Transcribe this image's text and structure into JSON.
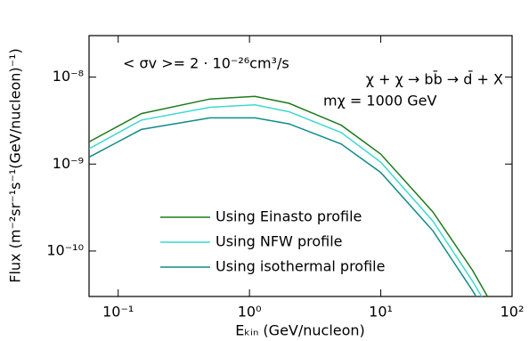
{
  "chart_data": {
    "type": "line",
    "annotations": [
      "< σv >= 2 · 10⁻²⁶cm³/s",
      "χ + χ → bb̄ → d̄ + X",
      "mχ = 1000 GeV"
    ],
    "x_label": "Eₖᵢₙ (GeV/nucleon)",
    "y_label": "Flux (m⁻²sr⁻¹s⁻¹(GeV/nucleon)⁻¹)",
    "x": [
      0.06,
      0.15,
      0.5,
      1.1,
      2,
      5,
      10,
      25,
      50,
      65
    ],
    "series": [
      {
        "name": "Using Einasto profile",
        "color": "#1e7a1e",
        "values": [
          1.8e-09,
          3.8e-09,
          5.6e-09,
          6e-09,
          5e-09,
          2.8e-09,
          1.3e-09,
          2.8e-10,
          6e-11,
          3e-11
        ]
      },
      {
        "name": "Using NFW profile",
        "color": "#3fd8d0",
        "values": [
          1.5e-09,
          3.2e-09,
          4.5e-09,
          4.8e-09,
          4e-09,
          2.3e-09,
          1.05e-09,
          2.2e-10,
          4.5e-11,
          2.3e-11
        ]
      },
      {
        "name": "Using isothermal profile",
        "color": "#138a8a",
        "values": [
          1.2e-09,
          2.5e-09,
          3.4e-09,
          3.4e-09,
          2.9e-09,
          1.7e-09,
          8e-10,
          1.7e-10,
          3.5e-11,
          1.8e-11
        ]
      }
    ],
    "log_x": true,
    "log_y": true,
    "xlim": [
      0.06,
      100
    ],
    "xticks": [
      {
        "value": 0.1,
        "label": "10⁻¹"
      },
      {
        "value": 1,
        "label": "10⁰"
      },
      {
        "value": 10,
        "label": "10¹"
      },
      {
        "value": 100,
        "label": "10²"
      }
    ],
    "ylim": [
      3e-11,
      3e-08
    ],
    "yticks": [
      {
        "value": 1e-10,
        "label": "10⁻¹⁰"
      },
      {
        "value": 1e-09,
        "label": "10⁻⁹"
      },
      {
        "value": 1e-08,
        "label": "10⁻⁸"
      }
    ],
    "legend": "lower left"
  }
}
